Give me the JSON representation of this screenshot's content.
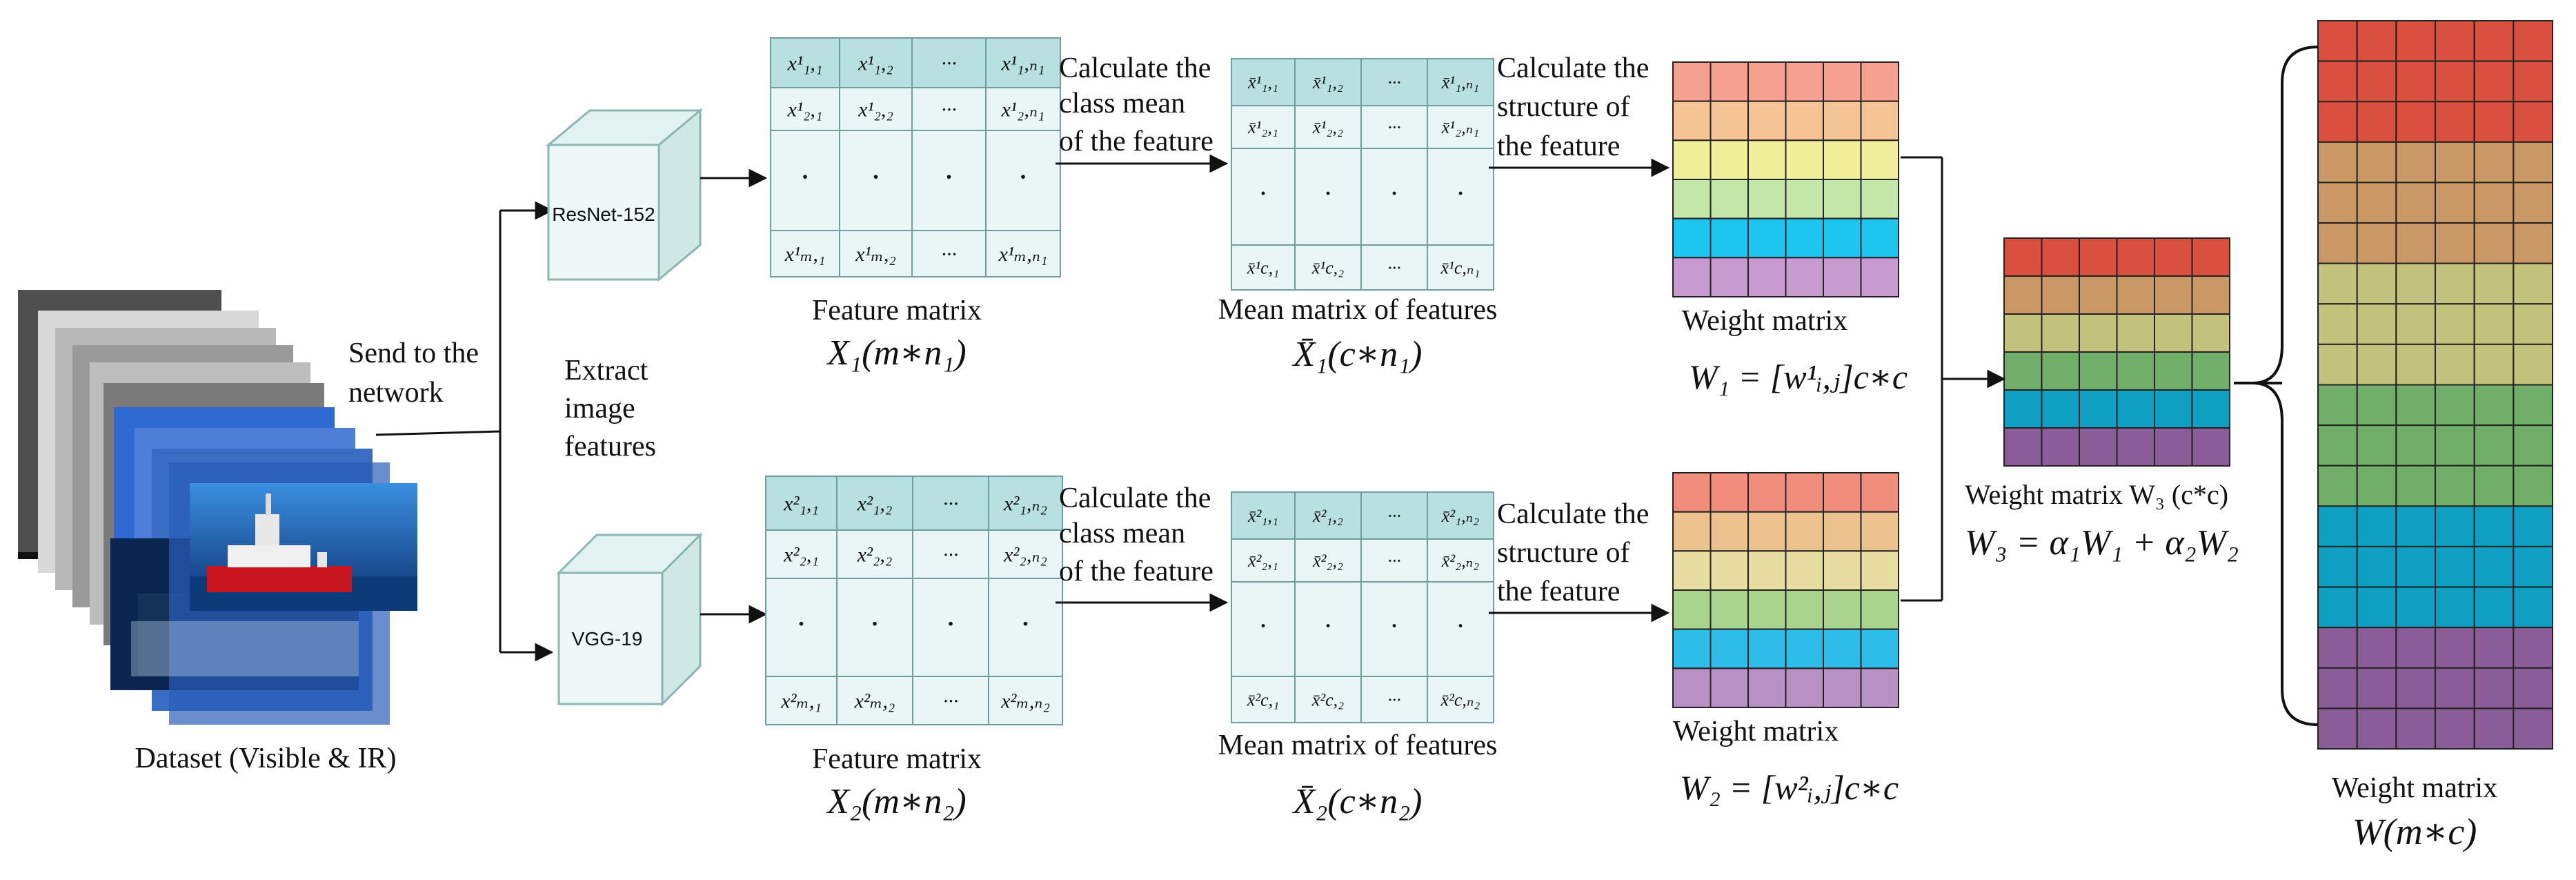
{
  "dataset": {
    "label": "Dataset (Visible & IR)"
  },
  "send": {
    "line1": "Send to the",
    "line2": "network"
  },
  "extract": {
    "line1": "Extract",
    "line2": "image",
    "line3": "features"
  },
  "networks": {
    "top": "ResNet-152",
    "bottom": "VGG-19"
  },
  "calc_mean": {
    "line1": "Calculate the",
    "line2": "class mean",
    "line3": "of the feature"
  },
  "calc_struct": {
    "line1": "Calculate the",
    "line2": "structure of",
    "line3": "the feature"
  },
  "feature_matrix": {
    "label": "Feature matrix",
    "formula_top": "X₁(m∗n₁)",
    "formula_bottom": "X₂(m∗n₂)",
    "top_cells": [
      [
        "x¹₁,₁",
        "x¹₁,₂",
        "···",
        "x¹₁,ₙ₁"
      ],
      [
        "x¹₂,₁",
        "x¹₂,₂",
        "···",
        "x¹₂,ₙ₁"
      ],
      [
        "·",
        "·",
        "·",
        "·"
      ],
      [
        "x¹ₘ,₁",
        "x¹ₘ,₂",
        "···",
        "x¹ₘ,ₙ₁"
      ]
    ],
    "bottom_cells": [
      [
        "x²₁,₁",
        "x²₁,₂",
        "···",
        "x²₁,ₙ₂"
      ],
      [
        "x²₂,₁",
        "x²₂,₂",
        "···",
        "x²₂,ₙ₂"
      ],
      [
        "·",
        "·",
        "·",
        "·"
      ],
      [
        "x²ₘ,₁",
        "x²ₘ,₂",
        "···",
        "x²ₘ,ₙ₂"
      ]
    ]
  },
  "mean_matrix": {
    "label": "Mean matrix of features",
    "formula_top": "X̄₁(c∗n₁)",
    "formula_bottom": "X̄₂(c∗n₂)",
    "top_cells": [
      [
        "x̄¹₁,₁",
        "x̄¹₁,₂",
        "···",
        "x̄¹₁,ₙ₁"
      ],
      [
        "x̄¹₂,₁",
        "x̄¹₂,₂",
        "···",
        "x̄¹₂,ₙ₁"
      ],
      [
        "·",
        "·",
        "·",
        "·"
      ],
      [
        "x̄¹c,₁",
        "x̄¹c,₂",
        "···",
        "x̄¹c,ₙ₁"
      ]
    ],
    "bottom_cells": [
      [
        "x̄²₁,₁",
        "x̄²₁,₂",
        "···",
        "x̄²₁,ₙ₂"
      ],
      [
        "x̄²₂,₁",
        "x̄²₂,₂",
        "···",
        "x̄²₂,ₙ₂"
      ],
      [
        "·",
        "·",
        "·",
        "·"
      ],
      [
        "x̄²c,₁",
        "x̄²c,₂",
        "···",
        "x̄²c,ₙ₂"
      ]
    ]
  },
  "weights": {
    "w1_label": "Weight matrix",
    "w1_formula": "W₁ = [w¹ᵢ,ⱼ]c∗c",
    "w2_label": "Weight matrix",
    "w2_formula": "W₂ = [w²ᵢ,ⱼ]c∗c",
    "w3_label": "Weight matrix W₃ (c*c)",
    "w3_formula": "W₃ = α₁W₁ + α₂W₂",
    "w_label": "Weight matrix",
    "w_formula": "W(m∗c)"
  },
  "colors": {
    "w1_rows": [
      "#f6a08f",
      "#f5c494",
      "#f2ef9a",
      "#c4e6a8",
      "#1cc6ee",
      "#c79ad0"
    ],
    "w2_rows": [
      "#f08d7c",
      "#ecc28f",
      "#e7dda0",
      "#a9d48e",
      "#2ebde8",
      "#b891c4"
    ],
    "w3_rows": [
      "#d9503f",
      "#c99865",
      "#c2c27c",
      "#71ae6a",
      "#0f9fc2",
      "#8a5c98"
    ],
    "w_rows": [
      "#d9503f",
      "#d9503f",
      "#d9503f",
      "#c99865",
      "#c99865",
      "#c99865",
      "#c2c27c",
      "#c2c27c",
      "#c2c27c",
      "#71ae6a",
      "#71ae6a",
      "#71ae6a",
      "#0f9fc2",
      "#0f9fc2",
      "#0f9fc2",
      "#8a5c98",
      "#8a5c98",
      "#8a5c98"
    ],
    "matrix_header": "#b8e0e0",
    "matrix_body": "#eaf6f6"
  }
}
